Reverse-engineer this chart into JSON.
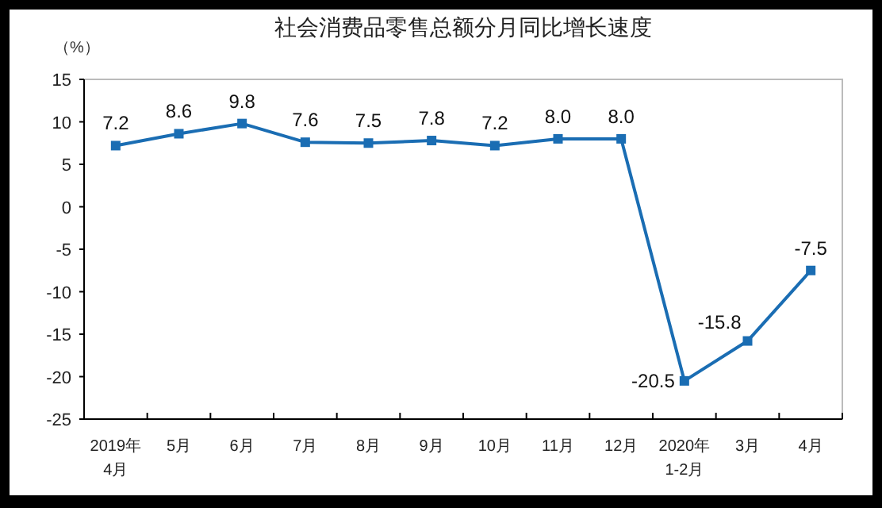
{
  "chart_data": {
    "type": "line",
    "title": "社会消费品零售总额分月同比增长速度",
    "ylabel": "（%）",
    "categories": [
      "2019年\n4月",
      "5月",
      "6月",
      "7月",
      "8月",
      "9月",
      "10月",
      "11月",
      "12月",
      "2020年\n1-2月",
      "3月",
      "4月"
    ],
    "values": [
      7.2,
      8.6,
      9.8,
      7.6,
      7.5,
      7.8,
      7.2,
      8.0,
      8.0,
      -20.5,
      -15.8,
      -7.5
    ],
    "value_labels": [
      "7.2",
      "8.6",
      "9.8",
      "7.6",
      "7.5",
      "7.8",
      "7.2",
      "8.0",
      "8.0",
      "-20.5",
      "-15.8",
      "-7.5"
    ],
    "color": "#1a6db3",
    "marker": "square",
    "line_style": "solid",
    "ylim": [
      -25,
      15
    ],
    "yticks": [
      -25,
      -20,
      -15,
      -10,
      -5,
      0,
      5,
      10,
      15
    ],
    "grid": false
  }
}
